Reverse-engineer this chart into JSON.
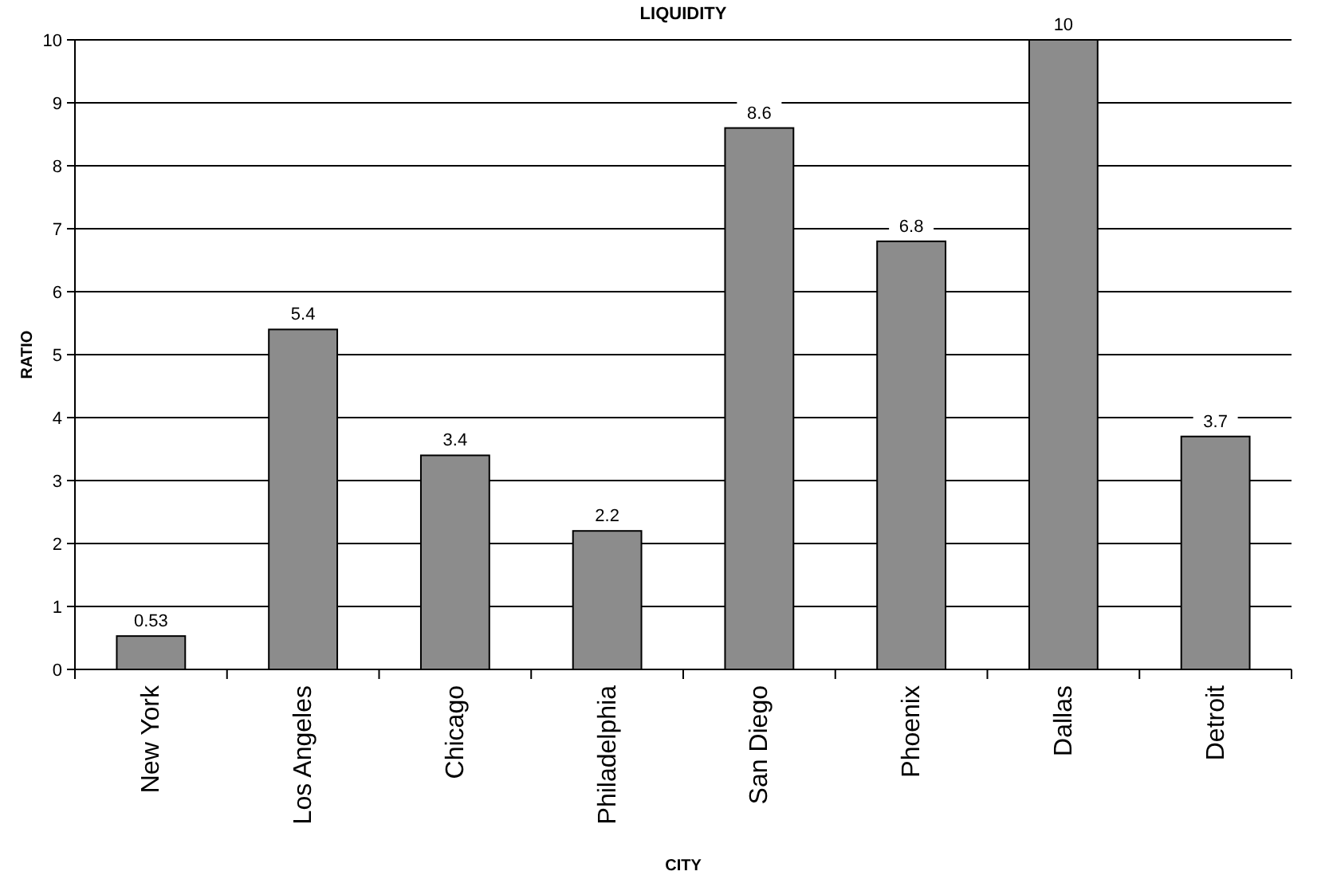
{
  "chart_data": {
    "type": "bar",
    "title": "LIQUIDITY",
    "xlabel": "CITY",
    "ylabel": "RATIO",
    "categories": [
      "New York",
      "Los Angeles",
      "Chicago",
      "Philadelphia",
      "San Diego",
      "Phoenix",
      "Dallas",
      "Detroit"
    ],
    "values": [
      0.53,
      5.4,
      3.4,
      2.2,
      8.6,
      6.8,
      10,
      3.7
    ],
    "color": "#8c8c8c",
    "ylim": [
      0,
      10
    ],
    "yticks": [
      0,
      1,
      2,
      3,
      4,
      5,
      6,
      7,
      8,
      9,
      10
    ],
    "grid": "y",
    "data_labels": true
  }
}
